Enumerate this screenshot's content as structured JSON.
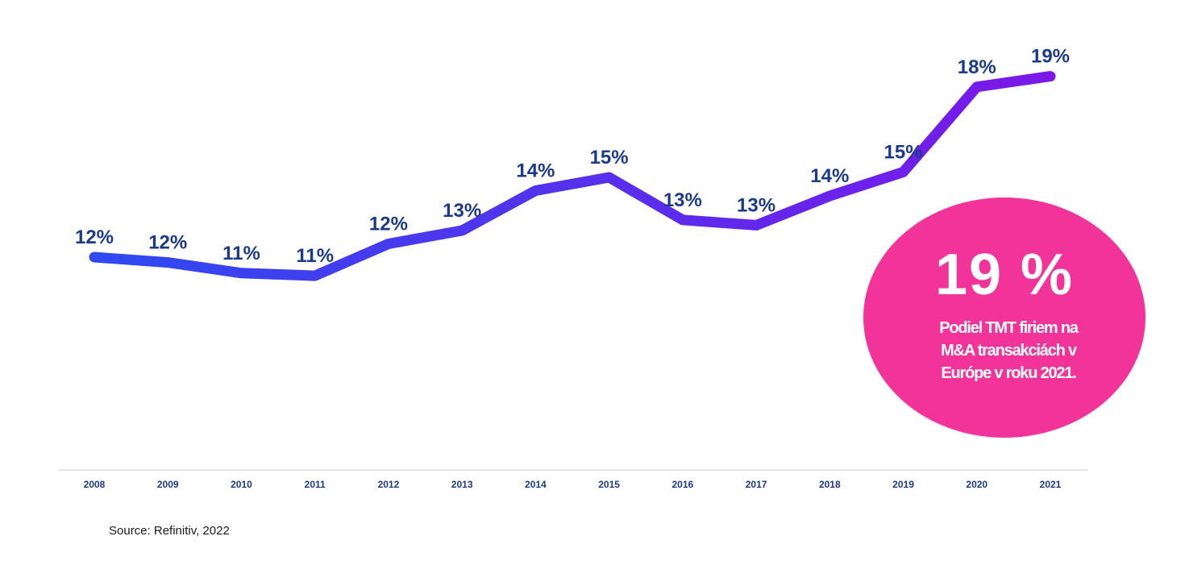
{
  "chart_data": {
    "type": "line",
    "categories": [
      "2008",
      "2009",
      "2010",
      "2011",
      "2012",
      "2013",
      "2014",
      "2015",
      "2016",
      "2017",
      "2018",
      "2019",
      "2020",
      "2021"
    ],
    "series": [
      {
        "name": "TMT share of European M&A",
        "values": [
          12.0,
          11.8,
          11.4,
          11.3,
          12.5,
          13.0,
          14.5,
          15.0,
          13.4,
          13.2,
          14.3,
          15.2,
          18.4,
          18.8
        ],
        "labels": [
          "12%",
          "12%",
          "11%",
          "11%",
          "12%",
          "13%",
          "14%",
          "15%",
          "13%",
          "13%",
          "14%",
          "15%",
          "18%",
          "19%"
        ]
      }
    ],
    "ylim": [
      4,
      21
    ],
    "title": "",
    "xlabel": "",
    "ylabel": "",
    "grid": false,
    "colors": {
      "line_start": "#2e4af0",
      "line_end": "#7b18e8",
      "data_label": "#1b3a8c",
      "tick_label": "#1b3a8c",
      "axis": "#d9d9d9"
    }
  },
  "callout": {
    "value": "19 %",
    "text": "Podiel TMT firiem na\nM&A transakciách v\nEurópe v  roku 2021.",
    "color": "#f2349a"
  },
  "source": "Source: Refinitiv,  2022"
}
